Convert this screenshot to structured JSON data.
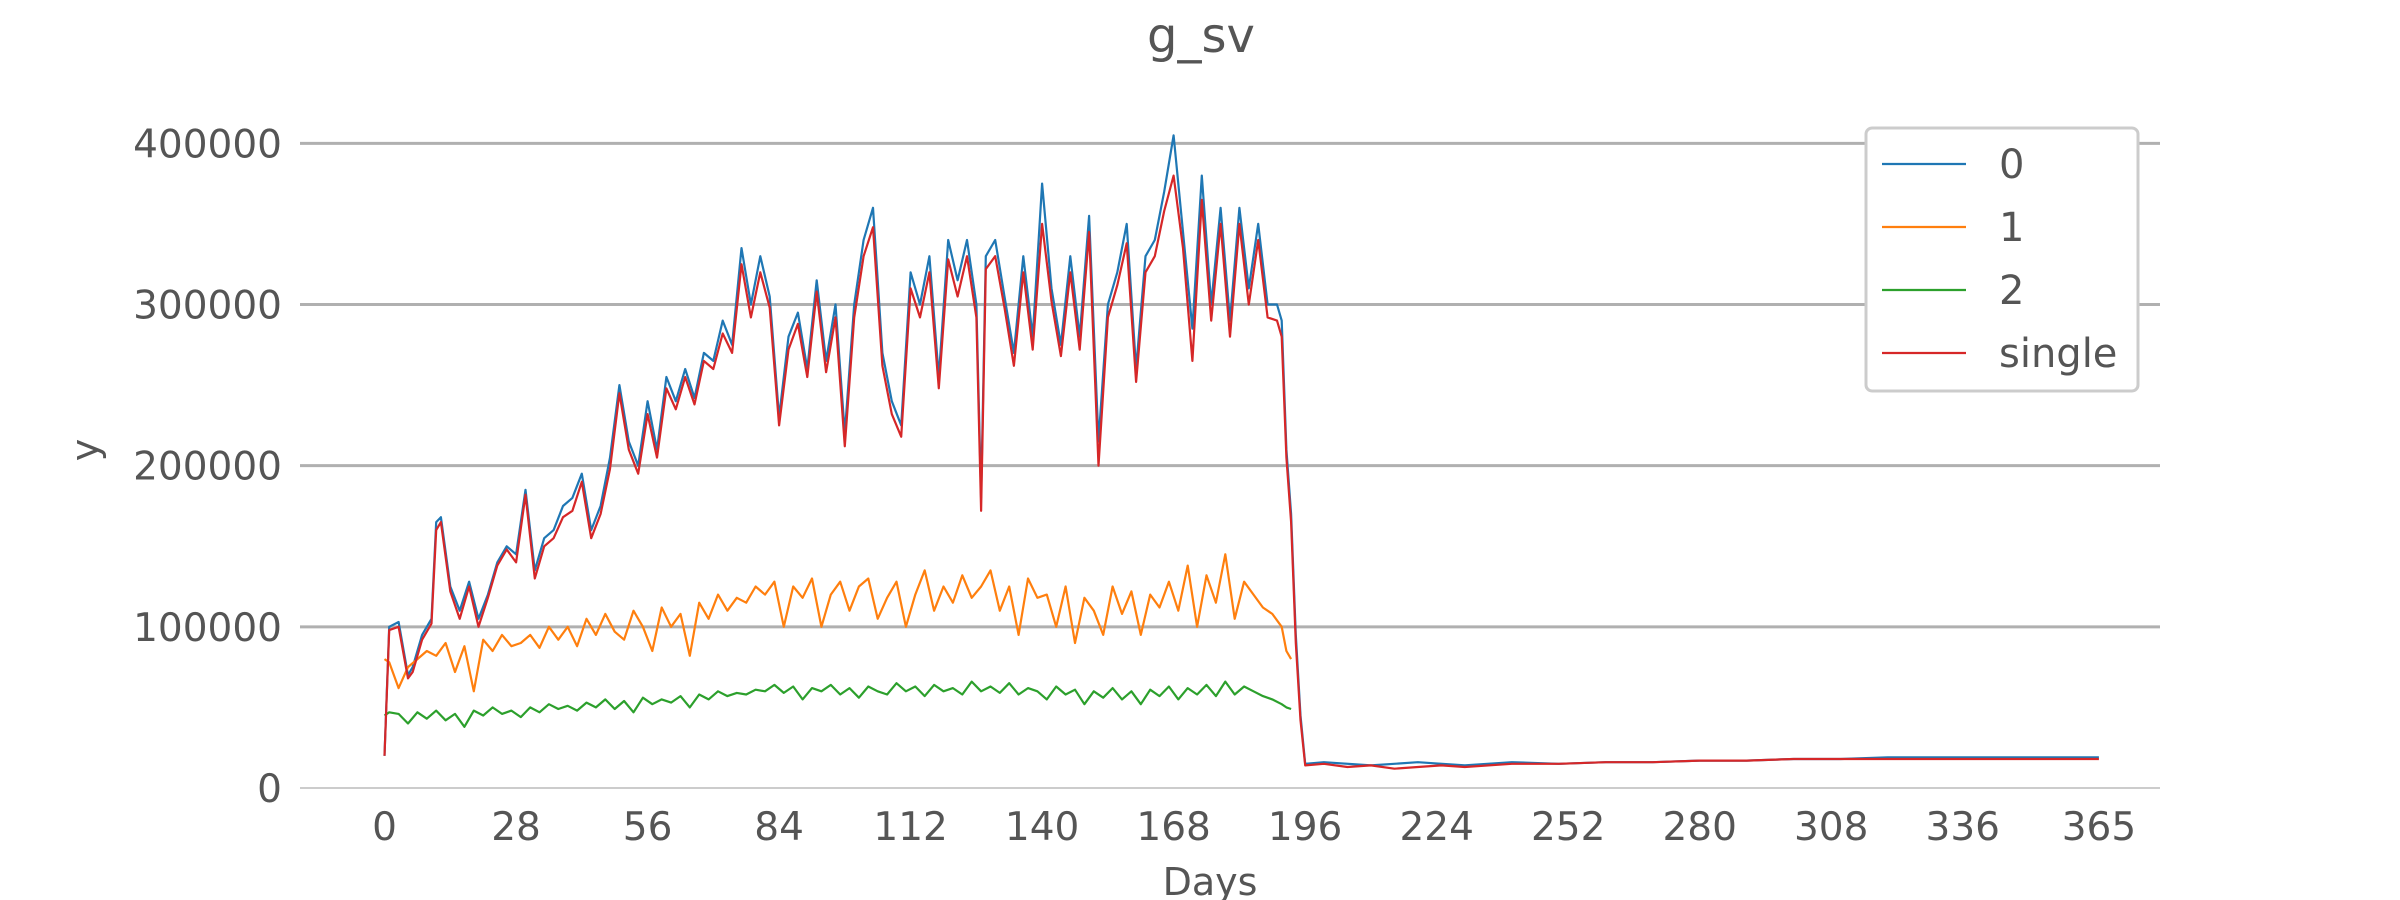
{
  "chart_data": {
    "type": "line",
    "title": "g_sv",
    "xlabel": "Days",
    "ylabel": "y",
    "xlim": [
      -18,
      378
    ],
    "ylim": [
      0,
      430000
    ],
    "x_ticks": [
      0,
      28,
      56,
      84,
      112,
      140,
      168,
      196,
      224,
      252,
      280,
      308,
      336,
      365
    ],
    "x_tick_labels": [
      "0",
      "28",
      "56",
      "84",
      "112",
      "140",
      "168",
      "196",
      "224",
      "252",
      "280",
      "308",
      "336",
      "365"
    ],
    "y_ticks": [
      0,
      100000,
      200000,
      300000,
      400000
    ],
    "y_tick_labels": [
      "0",
      "100000",
      "200000",
      "300000",
      "400000"
    ],
    "grid": "horizontal",
    "legend_position": "top-right",
    "series": [
      {
        "name": "0",
        "color": "#1f77b4",
        "x": [
          0,
          1,
          3,
          5,
          6,
          8,
          10,
          11,
          12,
          14,
          16,
          18,
          20,
          22,
          24,
          26,
          28,
          30,
          32,
          34,
          36,
          38,
          40,
          42,
          44,
          46,
          48,
          50,
          52,
          54,
          56,
          58,
          60,
          62,
          64,
          66,
          68,
          70,
          72,
          74,
          76,
          78,
          80,
          82,
          84,
          86,
          88,
          90,
          92,
          94,
          96,
          98,
          100,
          102,
          104,
          106,
          108,
          110,
          112,
          114,
          116,
          118,
          120,
          122,
          124,
          126,
          127,
          128,
          130,
          132,
          134,
          136,
          138,
          140,
          142,
          144,
          146,
          148,
          150,
          152,
          154,
          156,
          158,
          160,
          162,
          164,
          166,
          168,
          170,
          172,
          174,
          176,
          178,
          180,
          182,
          184,
          186,
          188,
          190,
          191,
          192,
          193,
          194,
          195,
          196,
          200,
          210,
          220,
          230,
          240,
          250,
          260,
          270,
          280,
          290,
          300,
          310,
          320,
          330,
          340,
          350,
          360,
          365
        ],
        "y": [
          20000,
          100000,
          103000,
          70000,
          75000,
          95000,
          105000,
          165000,
          168000,
          125000,
          110000,
          128000,
          105000,
          120000,
          140000,
          150000,
          145000,
          185000,
          135000,
          155000,
          160000,
          175000,
          180000,
          195000,
          160000,
          175000,
          205000,
          250000,
          215000,
          200000,
          240000,
          210000,
          255000,
          240000,
          260000,
          242000,
          270000,
          265000,
          290000,
          275000,
          335000,
          300000,
          330000,
          305000,
          230000,
          280000,
          295000,
          260000,
          315000,
          265000,
          300000,
          220000,
          300000,
          340000,
          360000,
          270000,
          240000,
          225000,
          320000,
          300000,
          330000,
          255000,
          340000,
          315000,
          340000,
          300000,
          180000,
          330000,
          340000,
          305000,
          270000,
          330000,
          280000,
          375000,
          310000,
          275000,
          330000,
          280000,
          355000,
          215000,
          300000,
          320000,
          350000,
          260000,
          330000,
          340000,
          370000,
          405000,
          345000,
          285000,
          380000,
          300000,
          360000,
          290000,
          360000,
          310000,
          350000,
          300000,
          300000,
          290000,
          210000,
          170000,
          95000,
          45000,
          15000,
          16000,
          14000,
          16000,
          14000,
          16000,
          15000,
          16000,
          16000,
          17000,
          17000,
          18000,
          18000,
          19000,
          19000,
          19000,
          19000,
          19000,
          19000
        ]
      },
      {
        "name": "1",
        "color": "#ff7f0e",
        "x": [
          0,
          1,
          3,
          5,
          7,
          9,
          11,
          13,
          15,
          17,
          19,
          21,
          23,
          25,
          27,
          29,
          31,
          33,
          35,
          37,
          39,
          41,
          43,
          45,
          47,
          49,
          51,
          53,
          55,
          57,
          59,
          61,
          63,
          65,
          67,
          69,
          71,
          73,
          75,
          77,
          79,
          81,
          83,
          85,
          87,
          89,
          91,
          93,
          95,
          97,
          99,
          101,
          103,
          105,
          107,
          109,
          111,
          113,
          115,
          117,
          119,
          121,
          123,
          125,
          127,
          129,
          131,
          133,
          135,
          137,
          139,
          141,
          143,
          145,
          147,
          149,
          151,
          153,
          155,
          157,
          159,
          161,
          163,
          165,
          167,
          169,
          171,
          173,
          175,
          177,
          179,
          181,
          183,
          185,
          187,
          189,
          191,
          192,
          193
        ],
        "y": [
          80000,
          78000,
          62000,
          75000,
          80000,
          85000,
          82000,
          90000,
          72000,
          88000,
          60000,
          92000,
          85000,
          95000,
          88000,
          90000,
          95000,
          87000,
          100000,
          92000,
          100000,
          88000,
          105000,
          95000,
          108000,
          97000,
          92000,
          110000,
          100000,
          85000,
          112000,
          100000,
          108000,
          82000,
          115000,
          105000,
          120000,
          110000,
          118000,
          115000,
          125000,
          120000,
          128000,
          100000,
          125000,
          118000,
          130000,
          100000,
          120000,
          128000,
          110000,
          125000,
          130000,
          105000,
          118000,
          128000,
          100000,
          120000,
          135000,
          110000,
          125000,
          115000,
          132000,
          118000,
          125000,
          135000,
          110000,
          125000,
          95000,
          130000,
          118000,
          120000,
          100000,
          125000,
          90000,
          118000,
          110000,
          95000,
          125000,
          108000,
          122000,
          95000,
          120000,
          112000,
          128000,
          110000,
          138000,
          100000,
          132000,
          115000,
          145000,
          105000,
          128000,
          120000,
          112000,
          108000,
          100000,
          85000,
          80000
        ]
      },
      {
        "name": "2",
        "color": "#2ca02c",
        "x": [
          0,
          1,
          3,
          5,
          7,
          9,
          11,
          13,
          15,
          17,
          19,
          21,
          23,
          25,
          27,
          29,
          31,
          33,
          35,
          37,
          39,
          41,
          43,
          45,
          47,
          49,
          51,
          53,
          55,
          57,
          59,
          61,
          63,
          65,
          67,
          69,
          71,
          73,
          75,
          77,
          79,
          81,
          83,
          85,
          87,
          89,
          91,
          93,
          95,
          97,
          99,
          101,
          103,
          105,
          107,
          109,
          111,
          113,
          115,
          117,
          119,
          121,
          123,
          125,
          127,
          129,
          131,
          133,
          135,
          137,
          139,
          141,
          143,
          145,
          147,
          149,
          151,
          153,
          155,
          157,
          159,
          161,
          163,
          165,
          167,
          169,
          171,
          173,
          175,
          177,
          179,
          181,
          183,
          185,
          187,
          189,
          191,
          192,
          193
        ],
        "y": [
          45000,
          47000,
          46000,
          40000,
          47000,
          43000,
          48000,
          42000,
          46000,
          38000,
          48000,
          45000,
          50000,
          46000,
          48000,
          44000,
          50000,
          47000,
          52000,
          49000,
          51000,
          48000,
          53000,
          50000,
          55000,
          49000,
          54000,
          47000,
          56000,
          52000,
          55000,
          53000,
          57000,
          50000,
          58000,
          55000,
          60000,
          57000,
          59000,
          58000,
          61000,
          60000,
          64000,
          59000,
          63000,
          55000,
          62000,
          60000,
          64000,
          58000,
          62000,
          56000,
          63000,
          60000,
          58000,
          65000,
          60000,
          63000,
          57000,
          64000,
          60000,
          62000,
          58000,
          66000,
          60000,
          63000,
          59000,
          65000,
          58000,
          62000,
          60000,
          55000,
          63000,
          58000,
          61000,
          52000,
          60000,
          56000,
          62000,
          55000,
          60000,
          52000,
          61000,
          57000,
          63000,
          55000,
          62000,
          58000,
          64000,
          57000,
          66000,
          58000,
          63000,
          60000,
          57000,
          55000,
          52000,
          50000,
          49000
        ]
      },
      {
        "name": "single",
        "color": "#d62728",
        "x": [
          0,
          1,
          3,
          5,
          6,
          8,
          10,
          11,
          12,
          14,
          16,
          18,
          20,
          22,
          24,
          26,
          28,
          30,
          32,
          34,
          36,
          38,
          40,
          42,
          44,
          46,
          48,
          50,
          52,
          54,
          56,
          58,
          60,
          62,
          64,
          66,
          68,
          70,
          72,
          74,
          76,
          78,
          80,
          82,
          84,
          86,
          88,
          90,
          92,
          94,
          96,
          98,
          100,
          102,
          104,
          106,
          108,
          110,
          112,
          114,
          116,
          118,
          120,
          122,
          124,
          126,
          127,
          128,
          130,
          132,
          134,
          136,
          138,
          140,
          142,
          144,
          146,
          148,
          150,
          152,
          154,
          156,
          158,
          160,
          162,
          164,
          166,
          168,
          170,
          172,
          174,
          176,
          178,
          180,
          182,
          184,
          186,
          188,
          190,
          191,
          192,
          193,
          194,
          195,
          196,
          200,
          205,
          210,
          215,
          220,
          225,
          230,
          240,
          250,
          260,
          270,
          280,
          290,
          300,
          310,
          320,
          330,
          340,
          350,
          360,
          365
        ],
        "y": [
          20000,
          98000,
          100000,
          68000,
          72000,
          92000,
          102000,
          160000,
          165000,
          122000,
          105000,
          125000,
          100000,
          118000,
          138000,
          148000,
          140000,
          182000,
          130000,
          150000,
          155000,
          168000,
          172000,
          190000,
          155000,
          170000,
          198000,
          245000,
          210000,
          195000,
          232000,
          205000,
          248000,
          235000,
          255000,
          238000,
          265000,
          260000,
          282000,
          270000,
          325000,
          292000,
          320000,
          298000,
          225000,
          272000,
          288000,
          255000,
          308000,
          258000,
          292000,
          212000,
          292000,
          330000,
          348000,
          262000,
          232000,
          218000,
          310000,
          292000,
          320000,
          248000,
          328000,
          305000,
          330000,
          292000,
          172000,
          322000,
          330000,
          298000,
          262000,
          320000,
          272000,
          350000,
          302000,
          268000,
          320000,
          272000,
          345000,
          200000,
          292000,
          312000,
          338000,
          252000,
          320000,
          330000,
          358000,
          380000,
          335000,
          265000,
          365000,
          290000,
          350000,
          280000,
          350000,
          300000,
          340000,
          292000,
          290000,
          280000,
          205000,
          165000,
          90000,
          42000,
          14000,
          15000,
          13000,
          14000,
          12000,
          13000,
          14000,
          13000,
          15000,
          15000,
          16000,
          16000,
          17000,
          17000,
          18000,
          18000,
          18000,
          18000,
          18000,
          18000,
          18000,
          18000
        ]
      }
    ]
  }
}
